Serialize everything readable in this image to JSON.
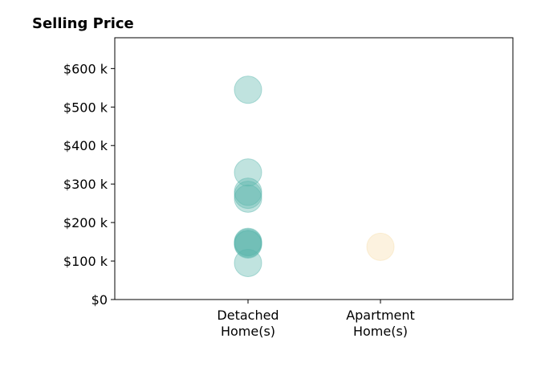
{
  "chart_data": {
    "type": "scatter",
    "title": "Selling Price",
    "xlabel": "",
    "ylabel": "",
    "categories": [
      [
        "Detached",
        "Home(s)"
      ],
      [
        "Apartment",
        "Home(s)"
      ]
    ],
    "ylim": [
      0,
      680000
    ],
    "yticks": [
      0,
      100000,
      200000,
      300000,
      400000,
      500000,
      600000
    ],
    "ytick_labels": [
      "$0",
      "$100 k",
      "$200 k",
      "$300 k",
      "$400 k",
      "$500 k",
      "$600 k"
    ],
    "grid": false,
    "legend": "none",
    "series": [
      {
        "category": 0,
        "color": "#59b6ac",
        "values": [
          545000,
          330000,
          280000,
          272000,
          262000,
          150000,
          148000,
          145000,
          143000,
          95000
        ]
      },
      {
        "category": 1,
        "color": "#f6deaa",
        "values": [
          137000
        ]
      }
    ]
  }
}
